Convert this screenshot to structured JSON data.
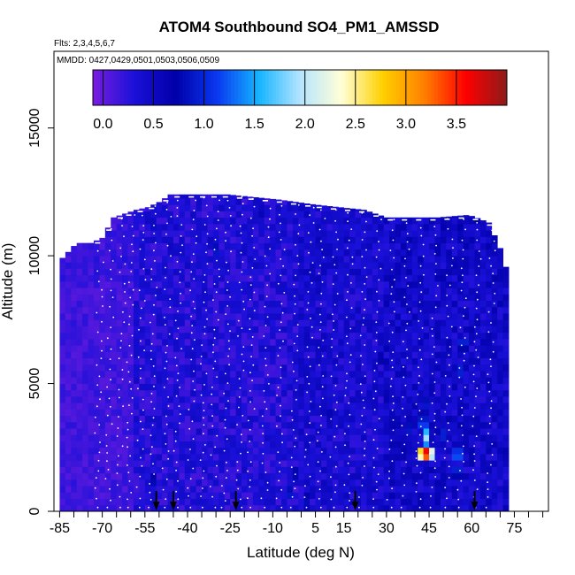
{
  "chart_data": {
    "type": "heatmap",
    "title": "ATOM4 Southbound SO4_PM1_AMSSD",
    "flights_label": "Flts: 2,3,4,5,6,7",
    "dates_label": "MMDD: 0427,0429,0501,0503,0506,0509",
    "xlabel": "Latitude (deg N)",
    "ylabel": "Altitude (m)",
    "xlim": [
      -87,
      87
    ],
    "ylim": [
      0,
      18000
    ],
    "x_ticks": [
      -85,
      -70,
      -55,
      -40,
      -25,
      -10,
      5,
      15,
      30,
      45,
      60,
      75
    ],
    "x_tick_labels": [
      "-85",
      "-70",
      "-55",
      "-40",
      "-25",
      "-10",
      "5",
      "15",
      "30",
      "45",
      "60",
      "75"
    ],
    "x_minor_step": 5,
    "y_ticks": [
      0,
      5000,
      10000,
      15000
    ],
    "y_tick_labels": [
      "0",
      "5000",
      "10000",
      "15000"
    ],
    "colorbar": {
      "min": -0.1,
      "max": 4.0,
      "ticks": [
        0.0,
        0.5,
        1.0,
        1.5,
        2.0,
        2.5,
        3.0,
        3.5
      ],
      "tick_labels": [
        "0.0",
        "0.5",
        "1.0",
        "1.5",
        "2.0",
        "2.5",
        "3.0",
        "3.5"
      ],
      "colors": [
        "#7a1de0",
        "#1a10d8",
        "#0000a8",
        "#0a38f0",
        "#14b4ff",
        "#b4e4ff",
        "#ffffd8",
        "#ffd000",
        "#ff8000",
        "#ff0000",
        "#8c1a1a"
      ]
    },
    "profile_markers_lat": [
      -51,
      -45,
      -23,
      19,
      61
    ],
    "data_envelope": {
      "lat": [
        -85,
        -79,
        -74,
        -70,
        -66,
        -58,
        -54,
        -50,
        -46,
        -30,
        -26,
        -8,
        5,
        22,
        30,
        48,
        59,
        66,
        70,
        73
      ],
      "top_alt": [
        9800,
        10500,
        10500,
        10700,
        11500,
        11800,
        11900,
        12100,
        12400,
        12400,
        12400,
        12200,
        12000,
        11800,
        11500,
        11500,
        11600,
        11300,
        10300,
        9200
      ]
    },
    "hotspots": [
      {
        "lat": 44,
        "alt": 2300,
        "value": 3.7
      },
      {
        "lat": 43,
        "alt": 2300,
        "value": 3.2
      },
      {
        "lat": 45,
        "alt": 2300,
        "value": 2.6
      },
      {
        "lat": 44,
        "alt": 2900,
        "value": 1.9
      },
      {
        "lat": 43,
        "alt": 3400,
        "value": 1.3
      },
      {
        "lat": 44,
        "alt": 4200,
        "value": 0.9
      },
      {
        "lat": 55,
        "alt": 2200,
        "value": 1.4
      },
      {
        "lat": 55,
        "alt": 1600,
        "value": 1.1
      },
      {
        "lat": 57,
        "alt": 6600,
        "value": 1.1
      },
      {
        "lat": 56,
        "alt": 5500,
        "value": 1.0
      },
      {
        "lat": 38,
        "alt": 3200,
        "value": 0.9
      },
      {
        "lat": 50,
        "alt": 3000,
        "value": 1.0
      },
      {
        "lat": -4,
        "alt": 700,
        "value": 0.9
      },
      {
        "lat": -2,
        "alt": 1500,
        "value": 0.8
      },
      {
        "lat": 2,
        "alt": 400,
        "value": 0.8
      },
      {
        "lat": -52,
        "alt": 1200,
        "value": 0.8
      },
      {
        "lat": 28,
        "alt": 6000,
        "value": 0.7
      },
      {
        "lat": -30,
        "alt": 10200,
        "value": 0.9
      },
      {
        "lat": -14,
        "alt": 11700,
        "value": 0.6
      },
      {
        "lat": 10,
        "alt": 3800,
        "value": 0.65
      }
    ]
  }
}
